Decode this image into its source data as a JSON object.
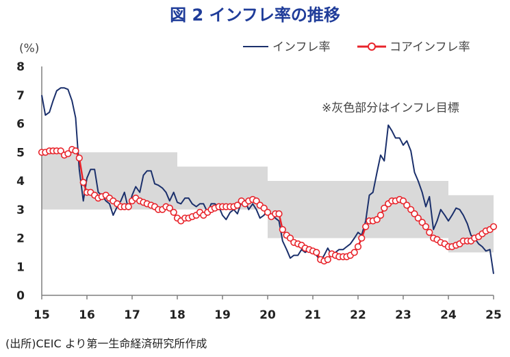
{
  "chart_data": {
    "type": "line",
    "title": "図 2 インフレ率の推移",
    "ylabel": "(%)",
    "xlabel": "",
    "ylim": [
      0,
      8
    ],
    "xlim": [
      2015,
      2025
    ],
    "yticks": [
      0,
      1,
      2,
      3,
      4,
      5,
      6,
      7,
      8
    ],
    "xticks": [
      2015,
      2016,
      2017,
      2018,
      2019,
      2020,
      2021,
      2022,
      2023,
      2024,
      2025
    ],
    "xtick_labels": [
      "15",
      "16",
      "17",
      "18",
      "19",
      "20",
      "21",
      "22",
      "23",
      "24",
      "25"
    ],
    "grid": false,
    "legend_position": "top-right",
    "annotation": "※灰色部分はインフレ目標",
    "source": "(出所)CEIC より第一生命経済研究所作成",
    "band": [
      {
        "x0": 2015.0,
        "x1": 2018.0,
        "low": 3,
        "high": 5
      },
      {
        "x0": 2018.0,
        "x1": 2020.0,
        "low": 3,
        "high": 4.5
      },
      {
        "x0": 2020.0,
        "x1": 2024.0,
        "low": 2,
        "high": 4
      },
      {
        "x0": 2024.0,
        "x1": 2025.0,
        "low": 1.5,
        "high": 3.5
      }
    ],
    "colors": {
      "headline": "#1a2f6b",
      "core_line": "#e8232a",
      "core_marker_fill": "#ffffff",
      "band": "#d9d9d9"
    },
    "series": [
      {
        "name": "インフレ率",
        "style": "line",
        "points": [
          [
            2015.0,
            7.0
          ],
          [
            2015.08,
            6.3
          ],
          [
            2015.17,
            6.4
          ],
          [
            2015.25,
            6.8
          ],
          [
            2015.33,
            7.15
          ],
          [
            2015.42,
            7.25
          ],
          [
            2015.5,
            7.25
          ],
          [
            2015.58,
            7.2
          ],
          [
            2015.67,
            6.8
          ],
          [
            2015.75,
            6.2
          ],
          [
            2015.83,
            4.4
          ],
          [
            2015.92,
            3.3
          ],
          [
            2016.0,
            4.1
          ],
          [
            2016.08,
            4.4
          ],
          [
            2016.17,
            4.4
          ],
          [
            2016.25,
            3.6
          ],
          [
            2016.33,
            3.5
          ],
          [
            2016.42,
            3.3
          ],
          [
            2016.5,
            3.2
          ],
          [
            2016.58,
            2.8
          ],
          [
            2016.67,
            3.1
          ],
          [
            2016.75,
            3.3
          ],
          [
            2016.83,
            3.6
          ],
          [
            2016.92,
            3.0
          ],
          [
            2017.0,
            3.5
          ],
          [
            2017.08,
            3.8
          ],
          [
            2017.17,
            3.6
          ],
          [
            2017.25,
            4.2
          ],
          [
            2017.33,
            4.35
          ],
          [
            2017.42,
            4.35
          ],
          [
            2017.5,
            3.9
          ],
          [
            2017.58,
            3.85
          ],
          [
            2017.67,
            3.75
          ],
          [
            2017.75,
            3.6
          ],
          [
            2017.83,
            3.3
          ],
          [
            2017.92,
            3.6
          ],
          [
            2018.0,
            3.25
          ],
          [
            2018.08,
            3.2
          ],
          [
            2018.17,
            3.4
          ],
          [
            2018.25,
            3.4
          ],
          [
            2018.33,
            3.2
          ],
          [
            2018.42,
            3.1
          ],
          [
            2018.5,
            3.2
          ],
          [
            2018.58,
            3.2
          ],
          [
            2018.67,
            2.9
          ],
          [
            2018.75,
            3.2
          ],
          [
            2018.83,
            3.2
          ],
          [
            2018.92,
            3.1
          ],
          [
            2019.0,
            2.8
          ],
          [
            2019.08,
            2.65
          ],
          [
            2019.17,
            2.9
          ],
          [
            2019.25,
            3.0
          ],
          [
            2019.33,
            2.85
          ],
          [
            2019.42,
            3.25
          ],
          [
            2019.5,
            3.3
          ],
          [
            2019.58,
            3.0
          ],
          [
            2019.67,
            3.2
          ],
          [
            2019.75,
            3.0
          ],
          [
            2019.83,
            2.7
          ],
          [
            2019.92,
            2.8
          ],
          [
            2020.0,
            3.0
          ],
          [
            2020.08,
            2.8
          ],
          [
            2020.17,
            2.7
          ],
          [
            2020.25,
            2.6
          ],
          [
            2020.33,
            1.9
          ],
          [
            2020.42,
            1.6
          ],
          [
            2020.5,
            1.3
          ],
          [
            2020.58,
            1.4
          ],
          [
            2020.67,
            1.4
          ],
          [
            2020.75,
            1.6
          ],
          [
            2020.83,
            1.5
          ],
          [
            2020.92,
            1.6
          ],
          [
            2021.0,
            1.5
          ],
          [
            2021.08,
            1.4
          ],
          [
            2021.17,
            1.2
          ],
          [
            2021.25,
            1.4
          ],
          [
            2021.33,
            1.65
          ],
          [
            2021.42,
            1.4
          ],
          [
            2021.5,
            1.5
          ],
          [
            2021.58,
            1.6
          ],
          [
            2021.67,
            1.6
          ],
          [
            2021.75,
            1.7
          ],
          [
            2021.83,
            1.8
          ],
          [
            2021.92,
            2.0
          ],
          [
            2022.0,
            2.2
          ],
          [
            2022.08,
            2.1
          ],
          [
            2022.17,
            2.6
          ],
          [
            2022.25,
            3.5
          ],
          [
            2022.33,
            3.6
          ],
          [
            2022.42,
            4.3
          ],
          [
            2022.5,
            4.9
          ],
          [
            2022.58,
            4.7
          ],
          [
            2022.67,
            5.95
          ],
          [
            2022.75,
            5.75
          ],
          [
            2022.83,
            5.5
          ],
          [
            2022.92,
            5.5
          ],
          [
            2023.0,
            5.25
          ],
          [
            2023.08,
            5.4
          ],
          [
            2023.17,
            5.05
          ],
          [
            2023.25,
            4.3
          ],
          [
            2023.33,
            4.0
          ],
          [
            2023.42,
            3.6
          ],
          [
            2023.5,
            3.1
          ],
          [
            2023.58,
            3.45
          ],
          [
            2023.67,
            2.3
          ],
          [
            2023.75,
            2.6
          ],
          [
            2023.83,
            3.0
          ],
          [
            2023.92,
            2.8
          ],
          [
            2024.0,
            2.6
          ],
          [
            2024.08,
            2.8
          ],
          [
            2024.17,
            3.05
          ],
          [
            2024.25,
            3.0
          ],
          [
            2024.33,
            2.8
          ],
          [
            2024.42,
            2.5
          ],
          [
            2024.5,
            2.1
          ],
          [
            2024.58,
            2.0
          ],
          [
            2024.67,
            1.8
          ],
          [
            2024.75,
            1.7
          ],
          [
            2024.83,
            1.55
          ],
          [
            2024.92,
            1.6
          ],
          [
            2025.0,
            0.75
          ]
        ]
      },
      {
        "name": "コアインフレ率",
        "style": "line-markers",
        "points": [
          [
            2015.0,
            5.0
          ],
          [
            2015.08,
            5.0
          ],
          [
            2015.17,
            5.05
          ],
          [
            2015.25,
            5.05
          ],
          [
            2015.33,
            5.05
          ],
          [
            2015.42,
            5.05
          ],
          [
            2015.5,
            4.9
          ],
          [
            2015.58,
            4.95
          ],
          [
            2015.67,
            5.1
          ],
          [
            2015.75,
            5.05
          ],
          [
            2015.83,
            4.8
          ],
          [
            2015.92,
            3.95
          ],
          [
            2016.0,
            3.6
          ],
          [
            2016.08,
            3.6
          ],
          [
            2016.17,
            3.5
          ],
          [
            2016.25,
            3.4
          ],
          [
            2016.33,
            3.45
          ],
          [
            2016.42,
            3.5
          ],
          [
            2016.5,
            3.4
          ],
          [
            2016.58,
            3.3
          ],
          [
            2016.67,
            3.2
          ],
          [
            2016.75,
            3.1
          ],
          [
            2016.83,
            3.1
          ],
          [
            2016.92,
            3.1
          ],
          [
            2017.0,
            3.3
          ],
          [
            2017.08,
            3.4
          ],
          [
            2017.17,
            3.3
          ],
          [
            2017.25,
            3.25
          ],
          [
            2017.33,
            3.2
          ],
          [
            2017.42,
            3.15
          ],
          [
            2017.5,
            3.1
          ],
          [
            2017.58,
            3.0
          ],
          [
            2017.67,
            3.0
          ],
          [
            2017.75,
            3.1
          ],
          [
            2017.83,
            3.05
          ],
          [
            2017.92,
            2.9
          ],
          [
            2018.0,
            2.7
          ],
          [
            2018.08,
            2.6
          ],
          [
            2018.17,
            2.7
          ],
          [
            2018.25,
            2.7
          ],
          [
            2018.33,
            2.75
          ],
          [
            2018.42,
            2.8
          ],
          [
            2018.5,
            2.9
          ],
          [
            2018.58,
            2.8
          ],
          [
            2018.67,
            2.9
          ],
          [
            2018.75,
            3.0
          ],
          [
            2018.83,
            3.05
          ],
          [
            2018.92,
            3.1
          ],
          [
            2019.0,
            3.1
          ],
          [
            2019.08,
            3.1
          ],
          [
            2019.17,
            3.1
          ],
          [
            2019.25,
            3.1
          ],
          [
            2019.33,
            3.15
          ],
          [
            2019.42,
            3.3
          ],
          [
            2019.5,
            3.2
          ],
          [
            2019.58,
            3.3
          ],
          [
            2019.67,
            3.35
          ],
          [
            2019.75,
            3.3
          ],
          [
            2019.83,
            3.15
          ],
          [
            2019.92,
            3.05
          ],
          [
            2020.0,
            2.9
          ],
          [
            2020.08,
            2.75
          ],
          [
            2020.17,
            2.85
          ],
          [
            2020.25,
            2.85
          ],
          [
            2020.33,
            2.3
          ],
          [
            2020.42,
            2.1
          ],
          [
            2020.5,
            2.0
          ],
          [
            2020.58,
            1.85
          ],
          [
            2020.67,
            1.8
          ],
          [
            2020.75,
            1.75
          ],
          [
            2020.83,
            1.65
          ],
          [
            2020.92,
            1.6
          ],
          [
            2021.0,
            1.55
          ],
          [
            2021.08,
            1.5
          ],
          [
            2021.17,
            1.25
          ],
          [
            2021.25,
            1.2
          ],
          [
            2021.33,
            1.25
          ],
          [
            2021.42,
            1.45
          ],
          [
            2021.5,
            1.4
          ],
          [
            2021.58,
            1.35
          ],
          [
            2021.67,
            1.35
          ],
          [
            2021.75,
            1.35
          ],
          [
            2021.83,
            1.4
          ],
          [
            2021.92,
            1.5
          ],
          [
            2022.0,
            1.7
          ],
          [
            2022.08,
            2.0
          ],
          [
            2022.17,
            2.4
          ],
          [
            2022.25,
            2.6
          ],
          [
            2022.33,
            2.6
          ],
          [
            2022.42,
            2.65
          ],
          [
            2022.5,
            2.8
          ],
          [
            2022.58,
            3.05
          ],
          [
            2022.67,
            3.2
          ],
          [
            2022.75,
            3.3
          ],
          [
            2022.83,
            3.3
          ],
          [
            2022.92,
            3.35
          ],
          [
            2023.0,
            3.3
          ],
          [
            2023.08,
            3.15
          ],
          [
            2023.17,
            3.0
          ],
          [
            2023.25,
            2.85
          ],
          [
            2023.33,
            2.7
          ],
          [
            2023.42,
            2.55
          ],
          [
            2023.5,
            2.4
          ],
          [
            2023.58,
            2.2
          ],
          [
            2023.67,
            2.0
          ],
          [
            2023.75,
            1.95
          ],
          [
            2023.83,
            1.85
          ],
          [
            2023.92,
            1.8
          ],
          [
            2024.0,
            1.7
          ],
          [
            2024.08,
            1.7
          ],
          [
            2024.17,
            1.75
          ],
          [
            2024.25,
            1.8
          ],
          [
            2024.33,
            1.9
          ],
          [
            2024.42,
            1.9
          ],
          [
            2024.5,
            1.9
          ],
          [
            2024.58,
            2.0
          ],
          [
            2024.67,
            2.05
          ],
          [
            2024.75,
            2.15
          ],
          [
            2024.83,
            2.25
          ],
          [
            2024.92,
            2.3
          ],
          [
            2025.0,
            2.4
          ]
        ]
      }
    ]
  }
}
